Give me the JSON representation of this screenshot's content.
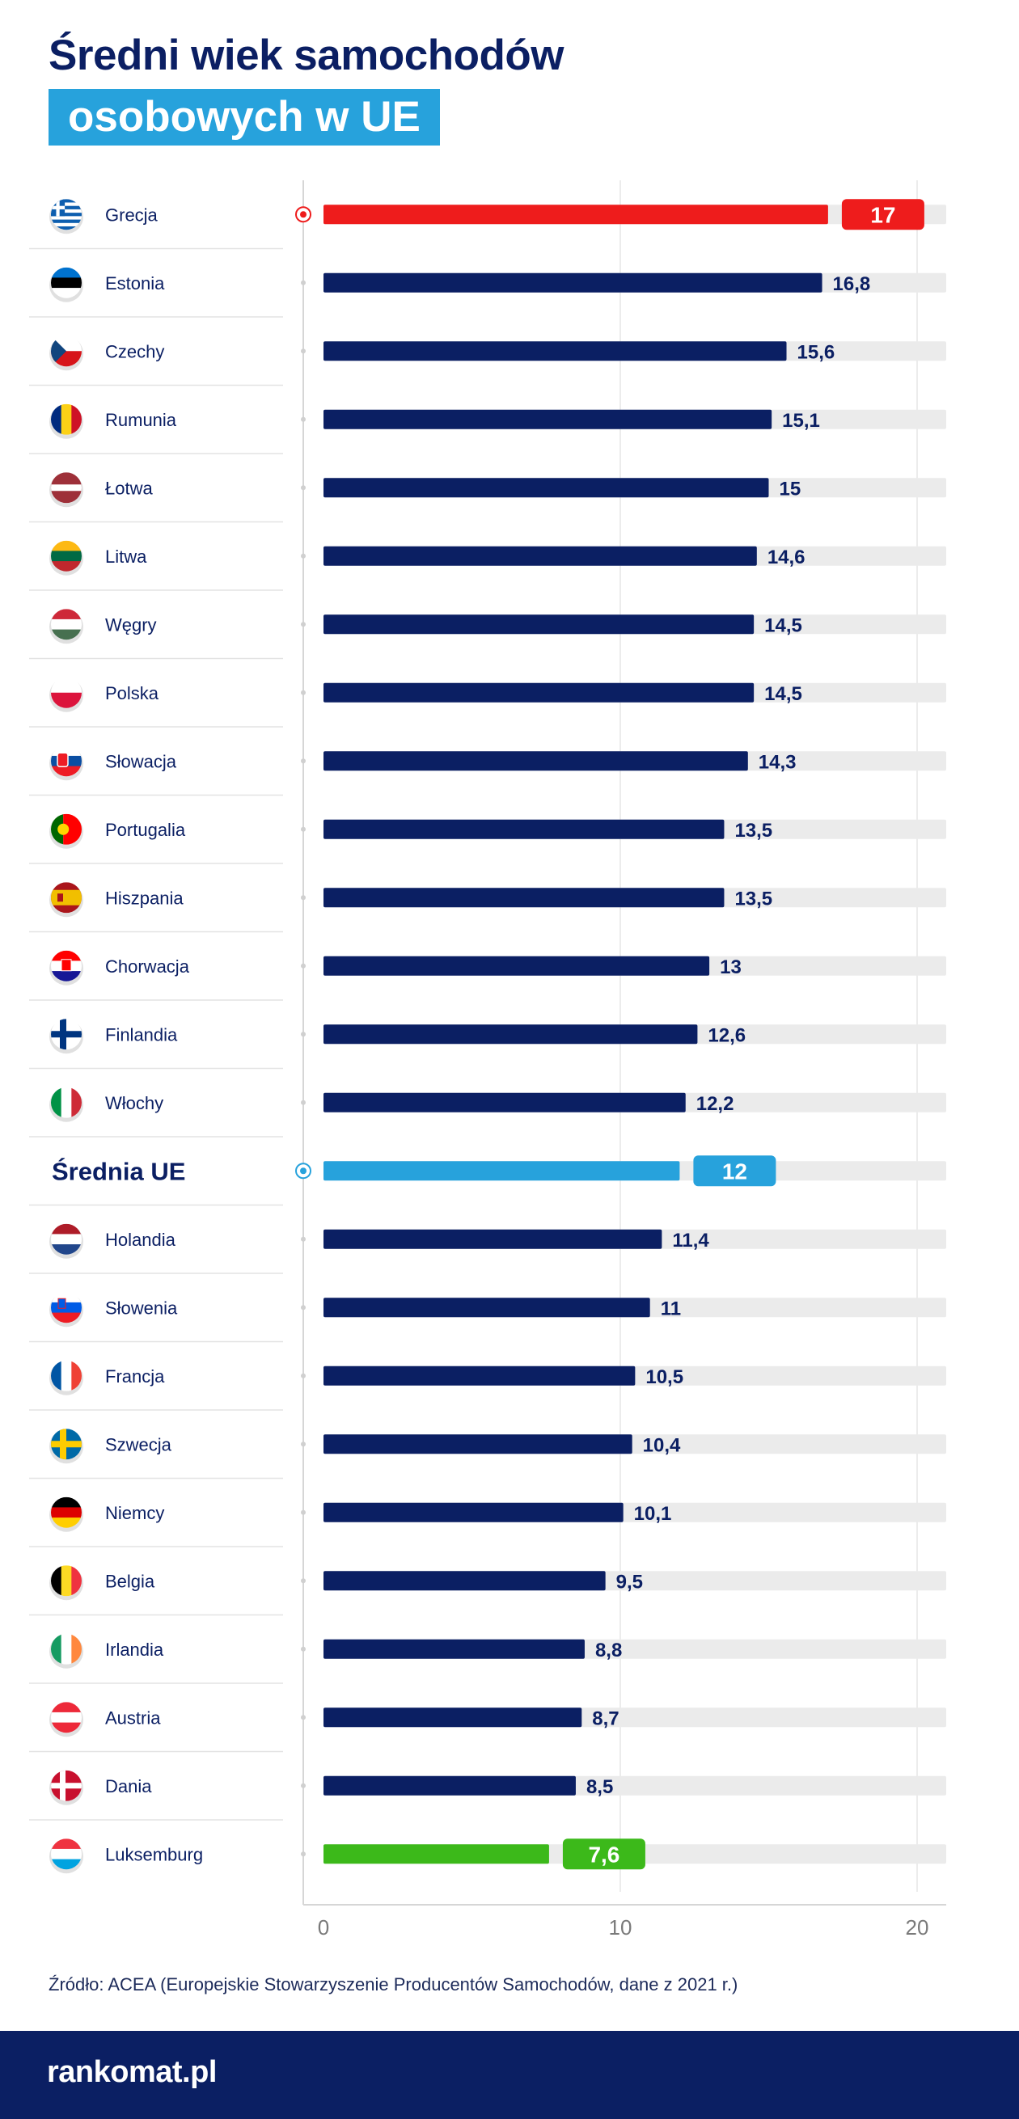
{
  "title": {
    "line1": "Średni wiek samochodów",
    "line2": "osobowych w UE"
  },
  "source": "Źródło: ACEA (Europejskie Stowarzyszenie Producentów Samochodów, dane z 2021 r.)",
  "logo": "rankomat.pl",
  "colors": {
    "bar_default": "#0b1f63",
    "bar_max": "#ee1c1c",
    "bar_min": "#3cb91a",
    "bar_average": "#27a2dc",
    "track": "#ebebeb",
    "text_dark": "#0b1f63"
  },
  "chart_data": {
    "type": "bar",
    "orientation": "horizontal",
    "title": "Średni wiek samochodów osobowych w UE",
    "xlim": [
      0,
      20
    ],
    "xticks": [
      "0",
      "10",
      "20"
    ],
    "grid": true,
    "rows": [
      {
        "label": "Grecja",
        "value": 17,
        "value_label": "17",
        "flag": "gr",
        "style": "max"
      },
      {
        "label": "Estonia",
        "value": 16.8,
        "value_label": "16,8",
        "flag": "ee",
        "style": "default"
      },
      {
        "label": "Czechy",
        "value": 15.6,
        "value_label": "15,6",
        "flag": "cz",
        "style": "default"
      },
      {
        "label": "Rumunia",
        "value": 15.1,
        "value_label": "15,1",
        "flag": "ro",
        "style": "default"
      },
      {
        "label": "Łotwa",
        "value": 15,
        "value_label": "15",
        "flag": "lv",
        "style": "default"
      },
      {
        "label": "Litwa",
        "value": 14.6,
        "value_label": "14,6",
        "flag": "lt",
        "style": "default"
      },
      {
        "label": "Węgry",
        "value": 14.5,
        "value_label": "14,5",
        "flag": "hu",
        "style": "default"
      },
      {
        "label": "Polska",
        "value": 14.5,
        "value_label": "14,5",
        "flag": "pl",
        "style": "default"
      },
      {
        "label": "Słowacja",
        "value": 14.3,
        "value_label": "14,3",
        "flag": "sk",
        "style": "default"
      },
      {
        "label": "Portugalia",
        "value": 13.5,
        "value_label": "13,5",
        "flag": "pt",
        "style": "default"
      },
      {
        "label": "Hiszpania",
        "value": 13.5,
        "value_label": "13,5",
        "flag": "es",
        "style": "default"
      },
      {
        "label": "Chorwacja",
        "value": 13,
        "value_label": "13",
        "flag": "hr",
        "style": "default"
      },
      {
        "label": "Finlandia",
        "value": 12.6,
        "value_label": "12,6",
        "flag": "fi",
        "style": "default"
      },
      {
        "label": "Włochy",
        "value": 12.2,
        "value_label": "12,2",
        "flag": "it",
        "style": "default"
      },
      {
        "label": "Średnia UE",
        "value": 12,
        "value_label": "12",
        "flag": "",
        "style": "average"
      },
      {
        "label": "Holandia",
        "value": 11.4,
        "value_label": "11,4",
        "flag": "nl",
        "style": "default"
      },
      {
        "label": "Słowenia",
        "value": 11,
        "value_label": "11",
        "flag": "si",
        "style": "default"
      },
      {
        "label": "Francja",
        "value": 10.5,
        "value_label": "10,5",
        "flag": "fr",
        "style": "default"
      },
      {
        "label": "Szwecja",
        "value": 10.4,
        "value_label": "10,4",
        "flag": "se",
        "style": "default"
      },
      {
        "label": "Niemcy",
        "value": 10.1,
        "value_label": "10,1",
        "flag": "de",
        "style": "default"
      },
      {
        "label": "Belgia",
        "value": 9.5,
        "value_label": "9,5",
        "flag": "be",
        "style": "default"
      },
      {
        "label": "Irlandia",
        "value": 8.8,
        "value_label": "8,8",
        "flag": "ie",
        "style": "default"
      },
      {
        "label": "Austria",
        "value": 8.7,
        "value_label": "8,7",
        "flag": "at",
        "style": "default"
      },
      {
        "label": "Dania",
        "value": 8.5,
        "value_label": "8,5",
        "flag": "dk",
        "style": "default"
      },
      {
        "label": "Luksemburg",
        "value": 7.6,
        "value_label": "7,6",
        "flag": "lu",
        "style": "min"
      }
    ]
  }
}
